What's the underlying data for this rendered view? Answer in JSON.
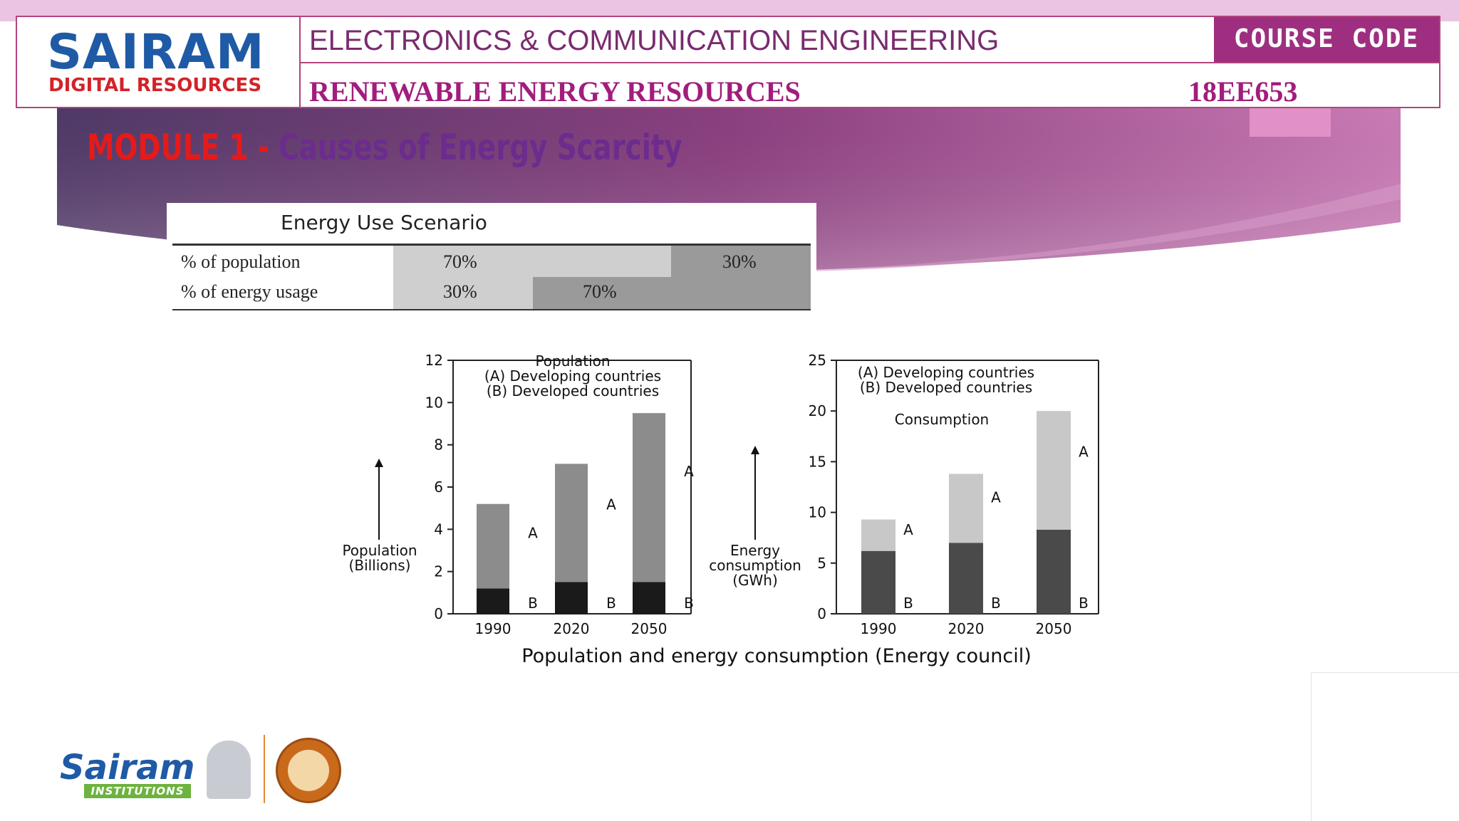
{
  "header": {
    "logo_main": "SAIRAM",
    "logo_sub": "DIGITAL RESOURCES",
    "department": "ELECTRONICS & COMMUNICATION ENGINEERING",
    "course_code_label": "COURSE CODE",
    "subject": "RENEWABLE ENERGY RESOURCES",
    "code": "18EE653"
  },
  "slide": {
    "module": "MODULE 1 - ",
    "title": "Causes of Energy Scarcity"
  },
  "scenario_table": {
    "title": "Energy Use Scenario",
    "rows": [
      {
        "label": "% of population",
        "developing": "70%",
        "developed": "30%"
      },
      {
        "label": "% of energy usage",
        "developing": "30%",
        "developed": "70%"
      }
    ]
  },
  "figure_caption": "Population and energy consumption (Energy council)",
  "footer": {
    "brand": "Sairam",
    "tagline": "INSTITUTIONS"
  },
  "colors": {
    "header_accent": "#b0457e",
    "title_red": "#e51a1a",
    "title_purple": "#6b2c8d",
    "band_gradient": [
      "#4e3a66",
      "#8a3f7e",
      "#c97bb4"
    ]
  },
  "chart_data": [
    {
      "type": "bar",
      "stacked": true,
      "categories": [
        "1990",
        "2020",
        "2050"
      ],
      "series": [
        {
          "name": "B",
          "values": [
            1.2,
            1.5,
            1.5
          ],
          "color": "#1a1a1a"
        },
        {
          "name": "A",
          "values": [
            4.0,
            5.6,
            8.0
          ],
          "color": "#8c8c8c"
        }
      ],
      "ylabel": "Population (Billions)",
      "ylim": [
        0,
        12
      ],
      "yticks": [
        0,
        2,
        4,
        6,
        8,
        10,
        12
      ],
      "legend": [
        "Population",
        "(A) Developing countries",
        "(B) Developed countries"
      ],
      "legend_position": "top"
    },
    {
      "type": "bar",
      "stacked": true,
      "categories": [
        "1990",
        "2020",
        "2050"
      ],
      "series": [
        {
          "name": "B",
          "values": [
            6.2,
            7.0,
            8.3
          ],
          "color": "#4a4a4a"
        },
        {
          "name": "A",
          "values": [
            3.1,
            6.8,
            11.7
          ],
          "color": "#c8c8c8"
        }
      ],
      "ylabel": "Energy consumption (GWh)",
      "ylim": [
        0,
        25
      ],
      "yticks": [
        0,
        5,
        10,
        15,
        20,
        25
      ],
      "legend": [
        "(A) Developing countries",
        "(B) Developed countries"
      ],
      "annotation": "Consumption",
      "legend_position": "top"
    }
  ]
}
